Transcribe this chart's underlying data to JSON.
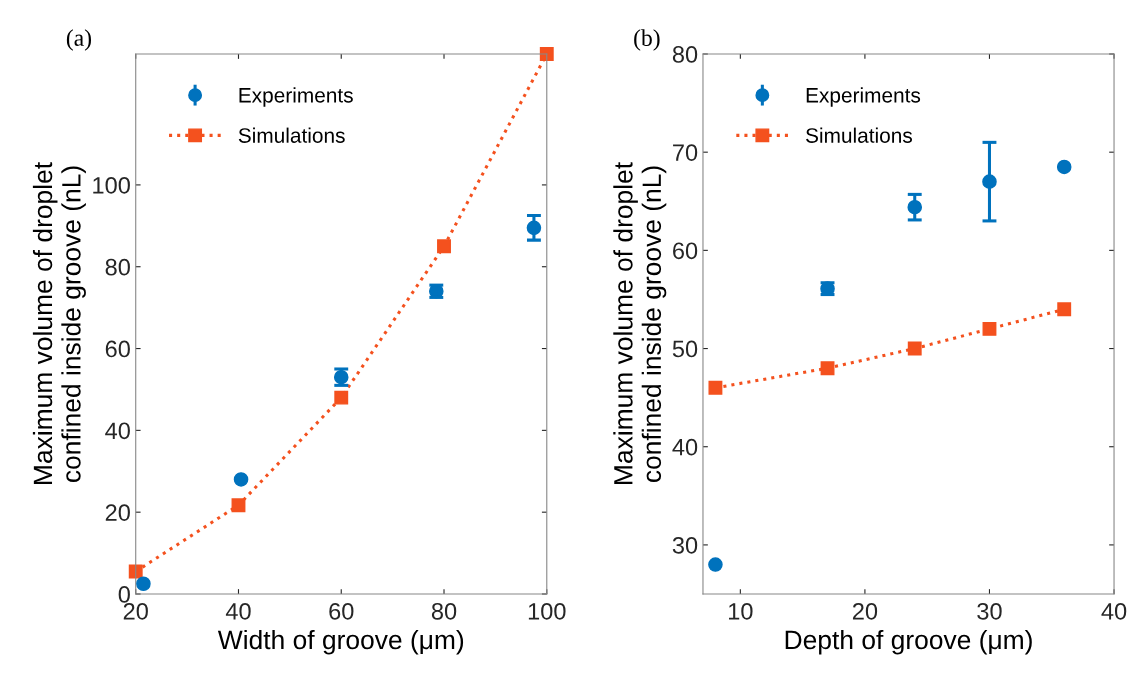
{
  "chart_data": [
    {
      "type": "scatter",
      "title": "(a)",
      "xlabel": "Width of groove (μm)",
      "ylabel": "Maximum volume of droplet\nconfined inside groove (nL)",
      "xlim": [
        20,
        100
      ],
      "ylim": [
        0,
        132
      ],
      "xticks": [
        20,
        40,
        60,
        80,
        100
      ],
      "yticks": [
        0,
        20,
        40,
        60,
        80,
        100
      ],
      "grid": false,
      "legend": "top left",
      "series": [
        {
          "name": "Experiments",
          "type": "scatter",
          "color": "#0072bd",
          "marker": "circle",
          "x": [
            21.5,
            40.5,
            60,
            78.5,
            97.5
          ],
          "values": [
            2.5,
            28,
            53,
            74,
            89.5
          ],
          "errors": [
            null,
            null,
            2,
            1.5,
            3
          ]
        },
        {
          "name": "Simulations",
          "type": "line",
          "color": "#f4511e",
          "marker": "square",
          "line_style": "dotted",
          "x": [
            20,
            40,
            60,
            80,
            100
          ],
          "values": [
            5.5,
            21.7,
            48,
            85,
            132
          ]
        }
      ]
    },
    {
      "type": "scatter",
      "title": "(b)",
      "xlabel": "Depth of groove (μm)",
      "ylabel": "Maximum volume of droplet\nconfined inside groove (nL)",
      "xlim": [
        7,
        40
      ],
      "ylim": [
        25,
        80
      ],
      "xticks": [
        10,
        20,
        30,
        40
      ],
      "yticks": [
        30,
        40,
        50,
        60,
        70,
        80
      ],
      "grid": false,
      "legend": "top left",
      "series": [
        {
          "name": "Experiments",
          "type": "scatter",
          "color": "#0072bd",
          "marker": "circle",
          "x": [
            8,
            17,
            24,
            30,
            36
          ],
          "values": [
            28,
            56.1,
            64.4,
            67,
            68.5
          ],
          "errors": [
            null,
            0.6,
            1.3,
            4,
            null
          ]
        },
        {
          "name": "Simulations",
          "type": "line",
          "color": "#f4511e",
          "marker": "square",
          "line_style": "dotted",
          "x": [
            8,
            17,
            24,
            30,
            36
          ],
          "values": [
            46,
            48,
            50,
            52,
            54
          ]
        }
      ]
    }
  ]
}
